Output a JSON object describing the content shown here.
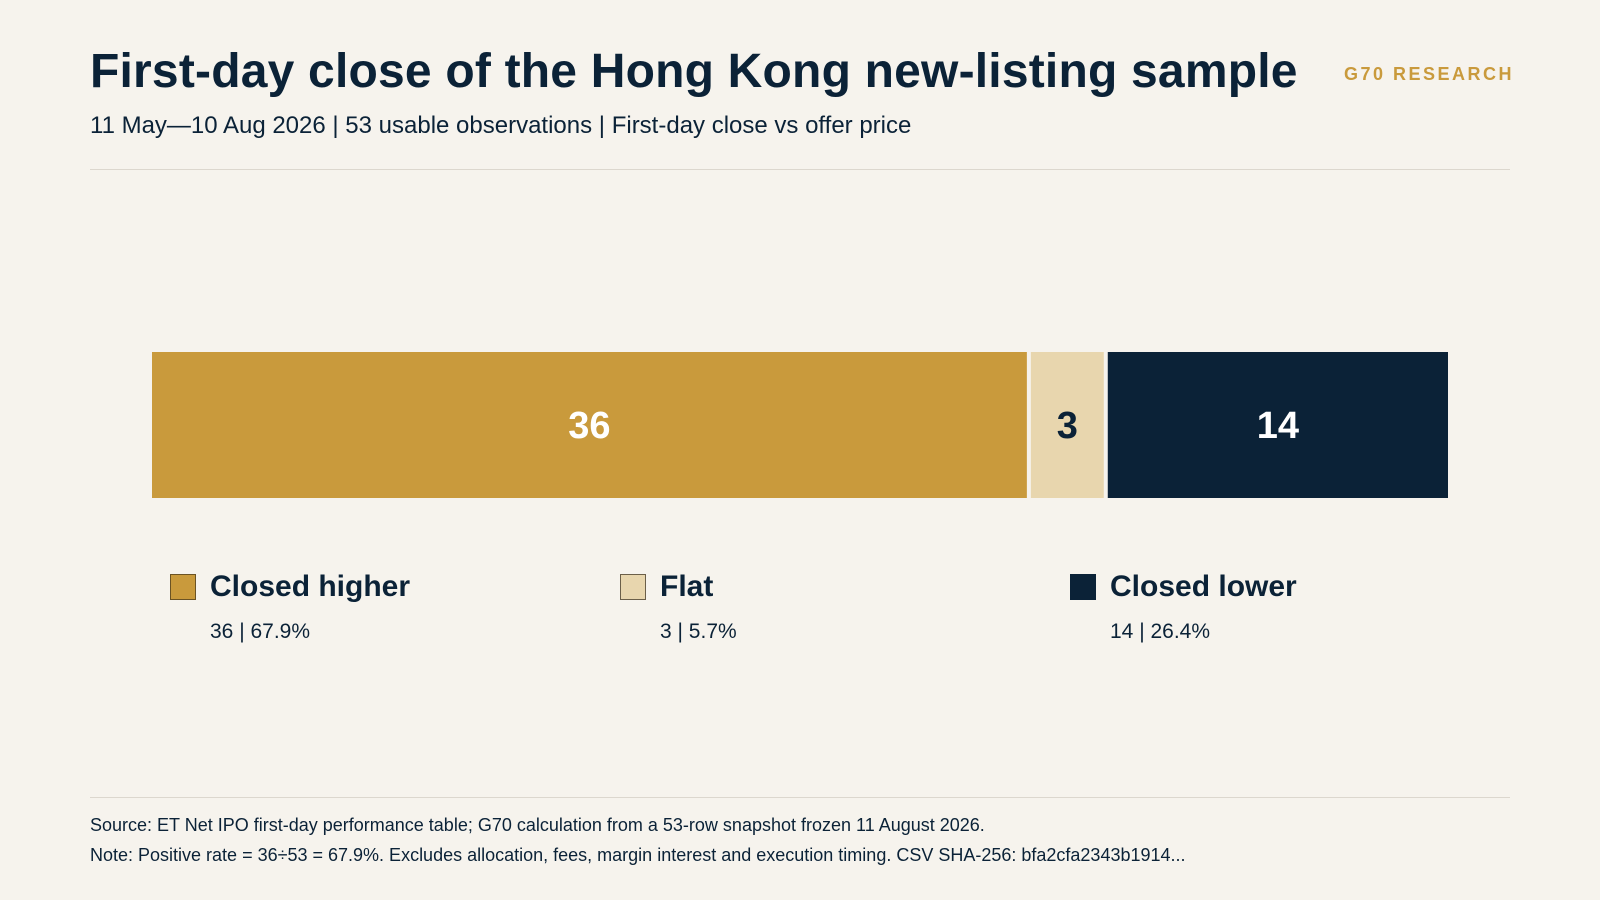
{
  "brand": "G70 RESEARCH",
  "header": {
    "title": "First-day close of the Hong Kong new-listing sample",
    "subtitle": "11 May—10 Aug 2026 | 53 usable observations | First-day close vs offer price"
  },
  "chart_data": {
    "type": "bar",
    "orientation": "horizontal",
    "stacked": true,
    "total": 53,
    "categories": [
      "Closed higher",
      "Flat",
      "Closed lower"
    ],
    "values": [
      36,
      3,
      14
    ],
    "percentages": [
      67.9,
      5.7,
      26.4
    ],
    "colors": [
      "#C99A3C",
      "#E8D6AE",
      "#0B2237"
    ],
    "data_label_colors": [
      "#FFFFFF",
      "#0B2237",
      "#FFFFFF"
    ],
    "title": "First-day close of the Hong Kong new-listing sample",
    "xlabel": "",
    "ylabel": "",
    "grid": false,
    "legend": "bottom"
  },
  "legend": [
    {
      "label": "Closed higher",
      "stat": "36 | 67.9%",
      "color": "#C99A3C",
      "border": "#6B5324"
    },
    {
      "label": "Flat",
      "stat": "3 | 5.7%",
      "color": "#E8D6AE",
      "border": "#6B5F49"
    },
    {
      "label": "Closed lower",
      "stat": "14 | 26.4%",
      "color": "#0B2237",
      "border": "#0B2237"
    }
  ],
  "footer": {
    "source": "Source: ET Net IPO first-day performance table; G70 calculation from a 53-row snapshot frozen 11 August 2026.",
    "note": "Note: Positive rate = 36÷53 = 67.9%. Excludes allocation, fees, margin interest and execution timing. CSV SHA-256: bfa2cfa2343b1914..."
  }
}
